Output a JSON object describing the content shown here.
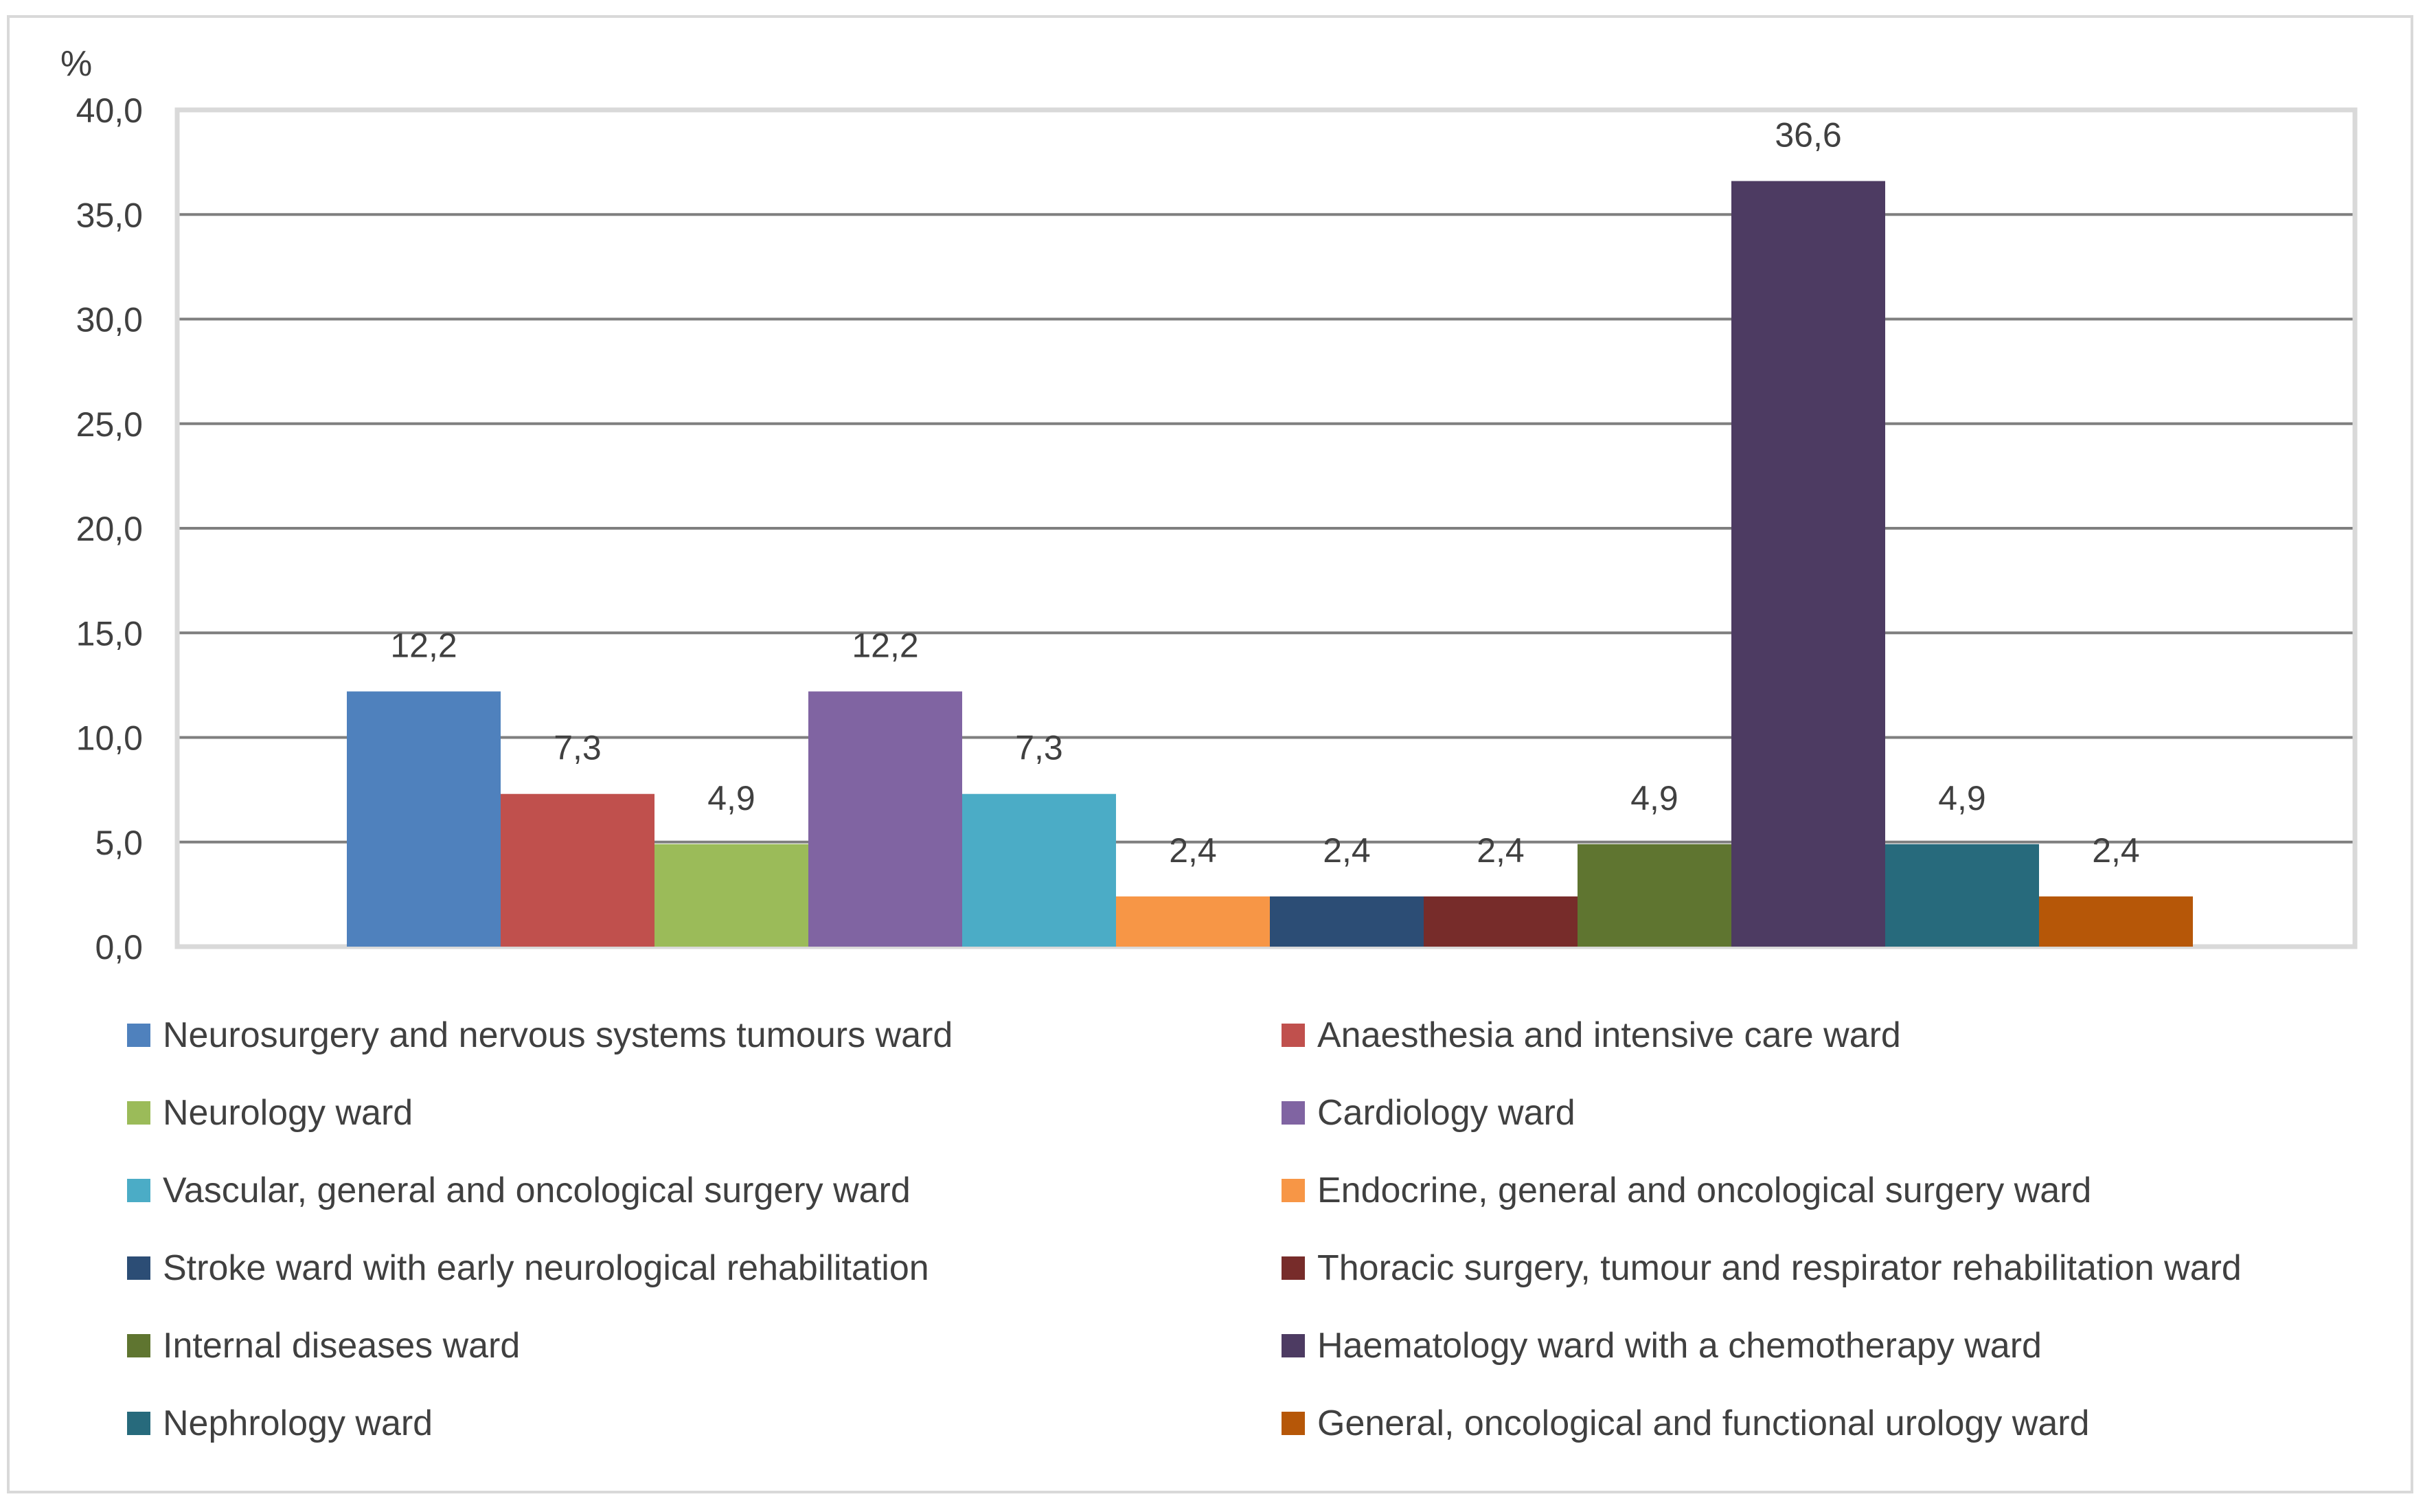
{
  "chart_data": {
    "type": "bar",
    "title": "",
    "xlabel": "",
    "ylabel": "%",
    "ylim": [
      0,
      40
    ],
    "ytick_step": 5,
    "ytick_labels": [
      "0,0",
      "5,0",
      "10,0",
      "15,0",
      "20,0",
      "25,0",
      "30,0",
      "35,0",
      "40,0"
    ],
    "grid": true,
    "legend_position": "bottom",
    "series": [
      {
        "name": "Neurosurgery and nervous systems tumours ward",
        "value": 12.2,
        "label": "12,2",
        "color": "#4f81bd"
      },
      {
        "name": "Anaesthesia and intensive care ward",
        "value": 7.3,
        "label": "7,3",
        "color": "#c0504d"
      },
      {
        "name": "Neurology ward",
        "value": 4.9,
        "label": "4,9",
        "color": "#9bbb59"
      },
      {
        "name": "Cardiology ward",
        "value": 12.2,
        "label": "12,2",
        "color": "#8064a2"
      },
      {
        "name": "Vascular, general and oncological surgery ward",
        "value": 7.3,
        "label": "7,3",
        "color": "#4bacc6"
      },
      {
        "name": "Endocrine, general and oncological surgery ward",
        "value": 2.4,
        "label": "2,4",
        "color": "#f79646"
      },
      {
        "name": "Stroke ward with early neurological rehabilitation",
        "value": 2.4,
        "label": "2,4",
        "color": "#2c4d75"
      },
      {
        "name": "Thoracic surgery, tumour and respirator rehabilitation ward",
        "value": 2.4,
        "label": "2,4",
        "color": "#772c2a"
      },
      {
        "name": "Internal diseases ward",
        "value": 4.9,
        "label": "4,9",
        "color": "#5f7530"
      },
      {
        "name": "Haematology ward with a chemotherapy ward",
        "value": 36.6,
        "label": "36,6",
        "color": "#4d3b62"
      },
      {
        "name": "Nephrology ward",
        "value": 4.9,
        "label": "4,9",
        "color": "#276a7c"
      },
      {
        "name": "General, oncological and functional urology ward",
        "value": 2.4,
        "label": "2,4",
        "color": "#b65708"
      }
    ]
  }
}
